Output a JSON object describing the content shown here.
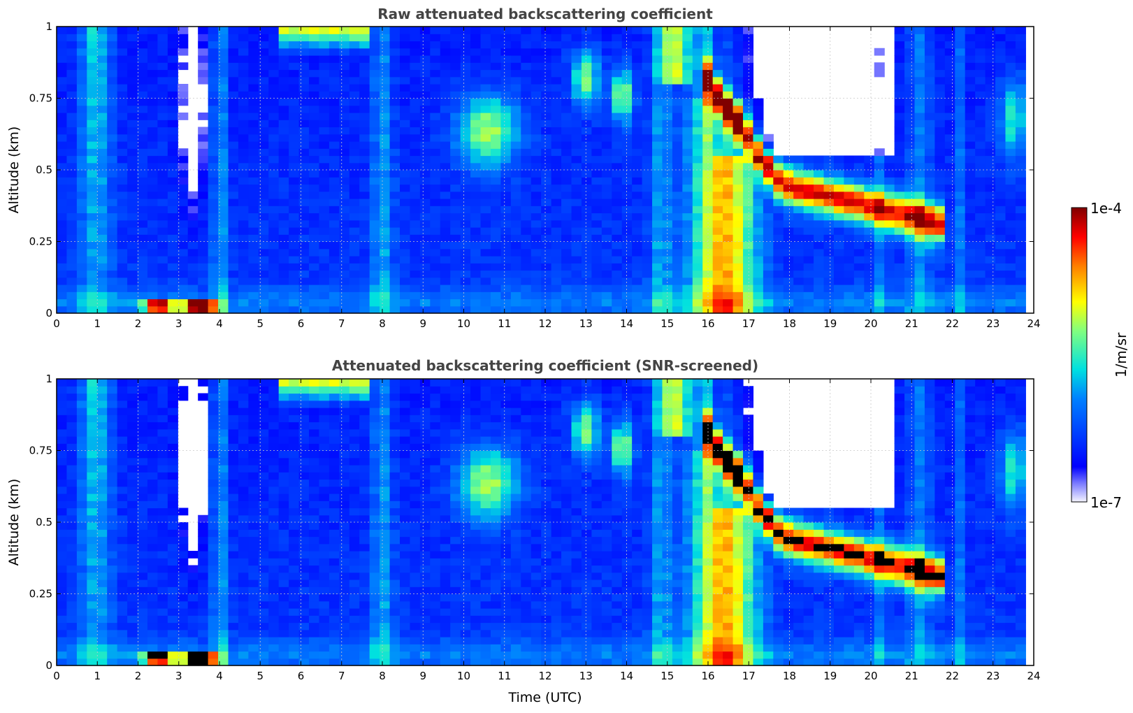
{
  "chart_data": [
    {
      "type": "heatmap",
      "title": "Raw attenuated backscattering coefficient",
      "ylabel": "Altitude (km)",
      "xlabel": "",
      "xlim": [
        0,
        24
      ],
      "ylim": [
        0,
        1
      ],
      "x_ticks": [
        "0",
        "1",
        "2",
        "3",
        "4",
        "5",
        "6",
        "7",
        "8",
        "9",
        "10",
        "11",
        "12",
        "13",
        "14",
        "15",
        "16",
        "17",
        "18",
        "19",
        "20",
        "21",
        "22",
        "23",
        "24"
      ],
      "y_ticks": [
        "0",
        "0.25",
        "0.5",
        "0.75",
        "1"
      ],
      "grid": true,
      "screened": false
    },
    {
      "type": "heatmap",
      "title": "Attenuated backscattering coefficient (SNR-screened)",
      "ylabel": "Altitude (km)",
      "xlabel": "Time (UTC)",
      "xlim": [
        0,
        24
      ],
      "ylim": [
        0,
        1
      ],
      "x_ticks": [
        "0",
        "1",
        "2",
        "3",
        "4",
        "5",
        "6",
        "7",
        "8",
        "9",
        "10",
        "11",
        "12",
        "13",
        "14",
        "15",
        "16",
        "17",
        "18",
        "19",
        "20",
        "21",
        "22",
        "23",
        "24"
      ],
      "y_ticks": [
        "0",
        "0.25",
        "0.5",
        "0.75",
        "1"
      ],
      "grid": true,
      "screened": true
    }
  ],
  "colorbar": {
    "label": "1/m/sr",
    "max_label": "1e-4",
    "min_label": "1e-7",
    "colormap": "jet"
  }
}
